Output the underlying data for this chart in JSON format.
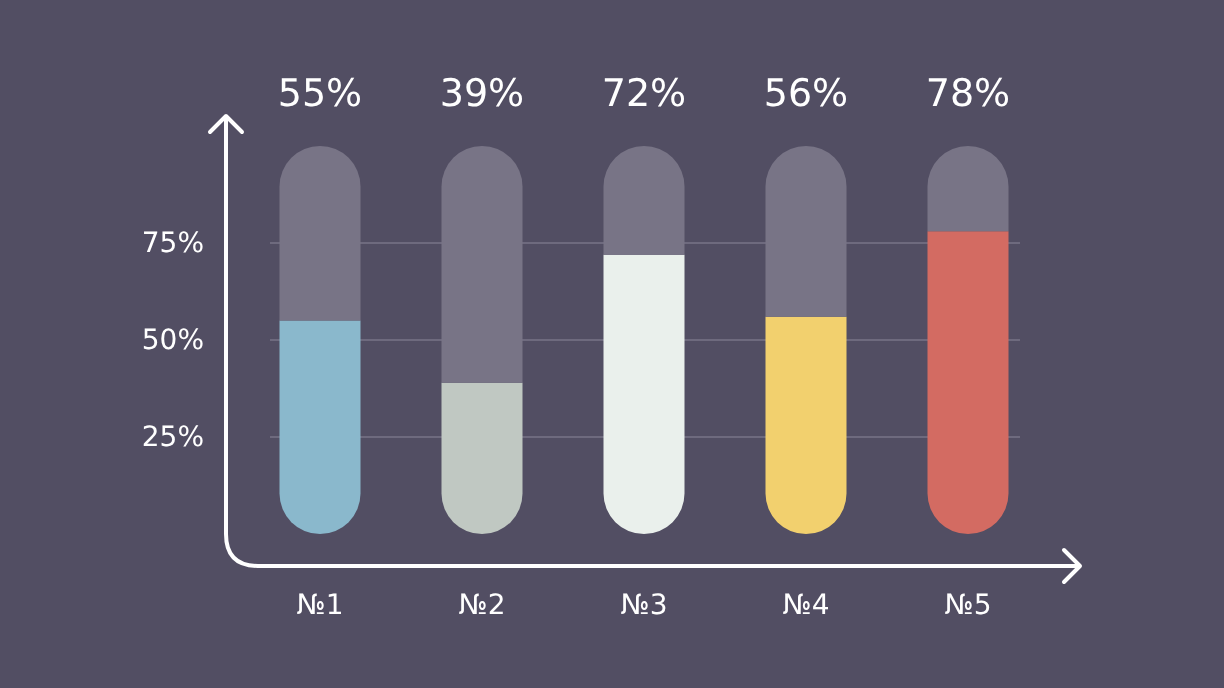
{
  "chart_data": {
    "type": "bar",
    "stacked": true,
    "categories": [
      "№1",
      "№2",
      "№3",
      "№4",
      "№5"
    ],
    "series": [
      {
        "colors": [
          "#8ab8cc",
          "#c0c8c2",
          "#eaf0ec",
          "#f2d06e",
          "#d36b62"
        ],
        "values": [
          55,
          39,
          72,
          56,
          78
        ]
      },
      {
        "color": "#787486",
        "values": [
          45,
          61,
          28,
          44,
          22
        ]
      }
    ],
    "ylim": [
      0,
      100
    ],
    "yticks": [
      {
        "value": 25,
        "label": "25%"
      },
      {
        "value": 50,
        "label": "50%"
      },
      {
        "value": 75,
        "label": "75%"
      }
    ],
    "grid": "y",
    "annotations": [
      "55%",
      "39%",
      "72%",
      "56%",
      "78%"
    ]
  }
}
